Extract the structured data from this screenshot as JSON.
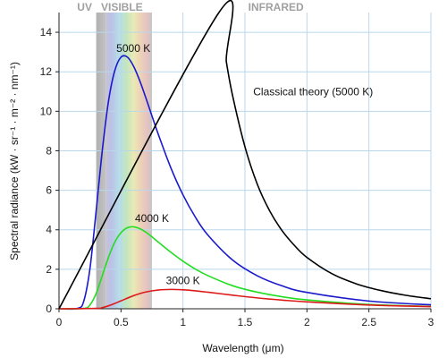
{
  "chart_data": {
    "type": "line",
    "xlabel": "Wavelength (μm)",
    "ylabel": "Spectral radiance (kW · sr⁻¹ · m⁻² · nm⁻¹)",
    "xlim": [
      0,
      3
    ],
    "ylim": [
      0,
      15
    ],
    "xticks": [
      0,
      0.5,
      1,
      1.5,
      2,
      2.5,
      3
    ],
    "xtick_labels": [
      "0",
      "0.5",
      "1",
      "1.5",
      "2",
      "2.5",
      "3"
    ],
    "yticks": [
      0,
      2,
      4,
      6,
      8,
      10,
      12,
      14
    ],
    "ytick_labels": [
      "0",
      "2",
      "4",
      "6",
      "8",
      "10",
      "12",
      "14"
    ],
    "grid": true,
    "regions": [
      {
        "name": "UV",
        "range": [
          0.3,
          0.38
        ],
        "label": "UV"
      },
      {
        "name": "VISIBLE",
        "range": [
          0.38,
          0.75
        ],
        "label": "VISIBLE"
      },
      {
        "name": "INFRARED",
        "range": [
          0.75,
          3
        ],
        "label": "INFRARED"
      }
    ],
    "series": [
      {
        "name": "5000 K",
        "color": "#1a1acc",
        "x": [
          0.15,
          0.2,
          0.25,
          0.3,
          0.35,
          0.4,
          0.45,
          0.5,
          0.55,
          0.6,
          0.65,
          0.7,
          0.75,
          0.8,
          0.9,
          1.0,
          1.1,
          1.2,
          1.4,
          1.6,
          1.8,
          2.0,
          2.5,
          3.0
        ],
        "y": [
          0.02,
          0.39,
          2.05,
          4.98,
          8.06,
          10.54,
          12.06,
          12.74,
          12.75,
          12.3,
          11.57,
          10.69,
          9.76,
          8.85,
          7.17,
          5.77,
          4.64,
          3.74,
          2.47,
          1.67,
          1.16,
          0.83,
          0.39,
          0.2
        ]
      },
      {
        "name": "4000 K",
        "color": "#22dd22",
        "x": [
          0.2,
          0.25,
          0.3,
          0.35,
          0.4,
          0.45,
          0.5,
          0.55,
          0.6,
          0.65,
          0.7,
          0.75,
          0.8,
          0.9,
          1.0,
          1.1,
          1.2,
          1.4,
          1.6,
          1.8,
          2.0,
          2.5,
          3.0
        ],
        "y": [
          0.02,
          0.2,
          0.78,
          1.69,
          2.62,
          3.37,
          3.85,
          4.1,
          4.15,
          4.06,
          3.88,
          3.64,
          3.38,
          2.87,
          2.41,
          2.01,
          1.68,
          1.17,
          0.84,
          0.61,
          0.45,
          0.22,
          0.12
        ]
      },
      {
        "name": "3000 K",
        "color": "#dd1a1a",
        "x": [
          0.3,
          0.35,
          0.4,
          0.45,
          0.5,
          0.6,
          0.7,
          0.8,
          0.9,
          1.0,
          1.1,
          1.2,
          1.4,
          1.6,
          1.8,
          2.0,
          2.5,
          3.0
        ],
        "y": [
          0.02,
          0.06,
          0.15,
          0.27,
          0.4,
          0.66,
          0.85,
          0.95,
          0.98,
          0.96,
          0.91,
          0.84,
          0.69,
          0.55,
          0.44,
          0.35,
          0.19,
          0.11
        ]
      },
      {
        "name": "Classical theory (5000 K)",
        "color": "#000000",
        "x": [
          1.29,
          1.35,
          1.4,
          1.5,
          1.6,
          1.7,
          1.8,
          1.9,
          2.0,
          2.2,
          2.4,
          2.6,
          2.8,
          3.0
        ],
        "y": [
          15.0,
          12.5,
          10.8,
          8.2,
          6.3,
          4.95,
          3.95,
          3.2,
          2.6,
          1.78,
          1.26,
          0.92,
          0.68,
          0.51
        ]
      }
    ],
    "annotations": [
      {
        "text": "5000 K",
        "x": 0.6,
        "y": 13.0,
        "series": "5000 K"
      },
      {
        "text": "4000 K",
        "x": 0.75,
        "y": 4.4,
        "series": "4000 K"
      },
      {
        "text": "3000 K",
        "x": 1.0,
        "y": 1.25,
        "series": "3000 K"
      },
      {
        "text": "Classical theory (5000 K)",
        "x": 2.05,
        "y": 10.8,
        "series": "Classical theory (5000 K)"
      }
    ]
  }
}
